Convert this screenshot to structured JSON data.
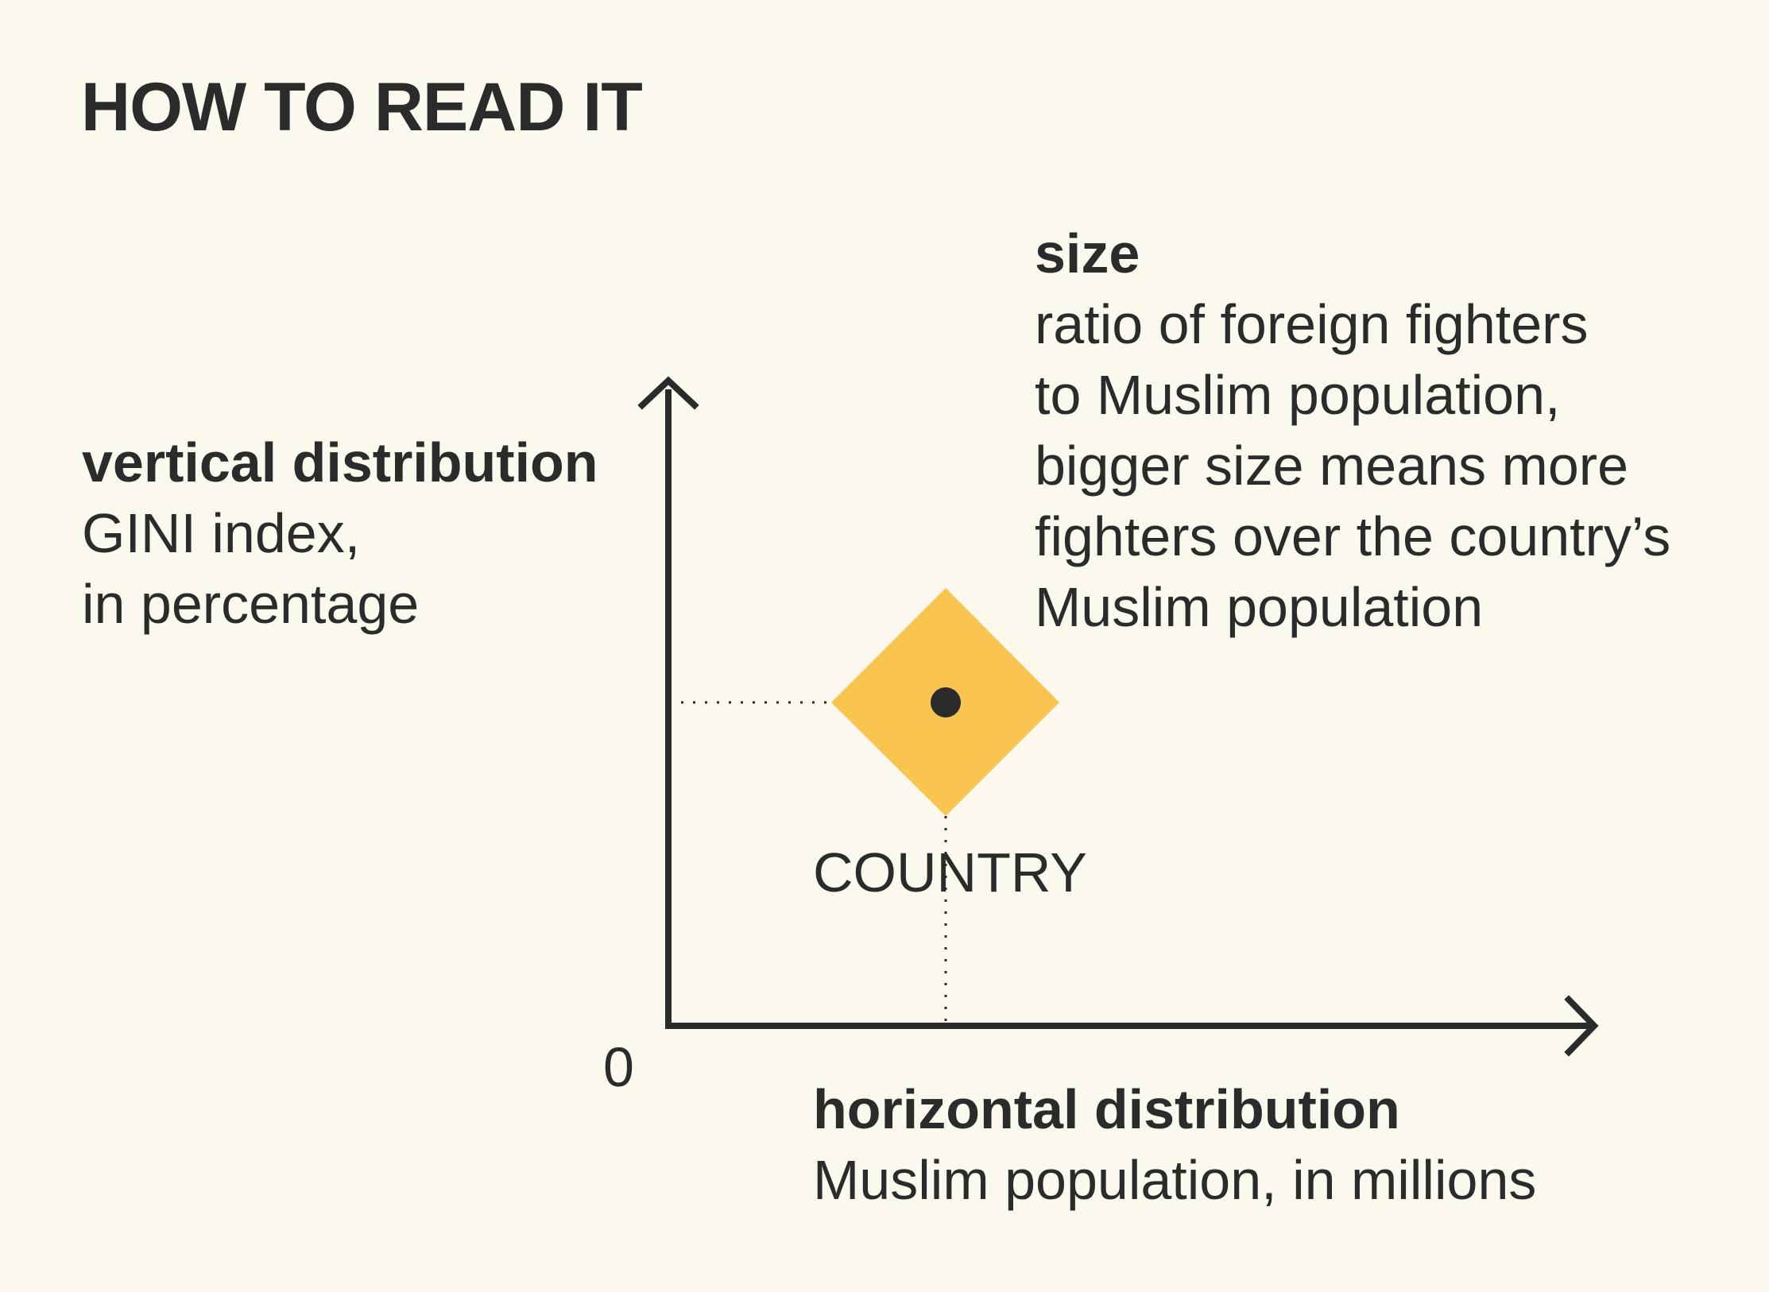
{
  "title": "HOW TO READ IT",
  "vertical": {
    "heading": "vertical distribution",
    "lines": [
      "GINI index,",
      "in percentage"
    ]
  },
  "size": {
    "heading": "size",
    "lines": [
      "ratio of foreign fighters",
      "to Muslim population,",
      "bigger size means more",
      "fighters over the country’s",
      "Muslim population"
    ]
  },
  "horizontal": {
    "heading": "horizontal distribution",
    "lines": [
      "Muslim population, in millions"
    ]
  },
  "origin_label": "0",
  "marker": {
    "label": "COUNTRY",
    "fill_color": "#F9C550",
    "dot_color": "#2B2B2B"
  },
  "colors": {
    "background": "#FBF8EE",
    "text": "#2B2B2B",
    "axis": "#2B2B2B"
  }
}
